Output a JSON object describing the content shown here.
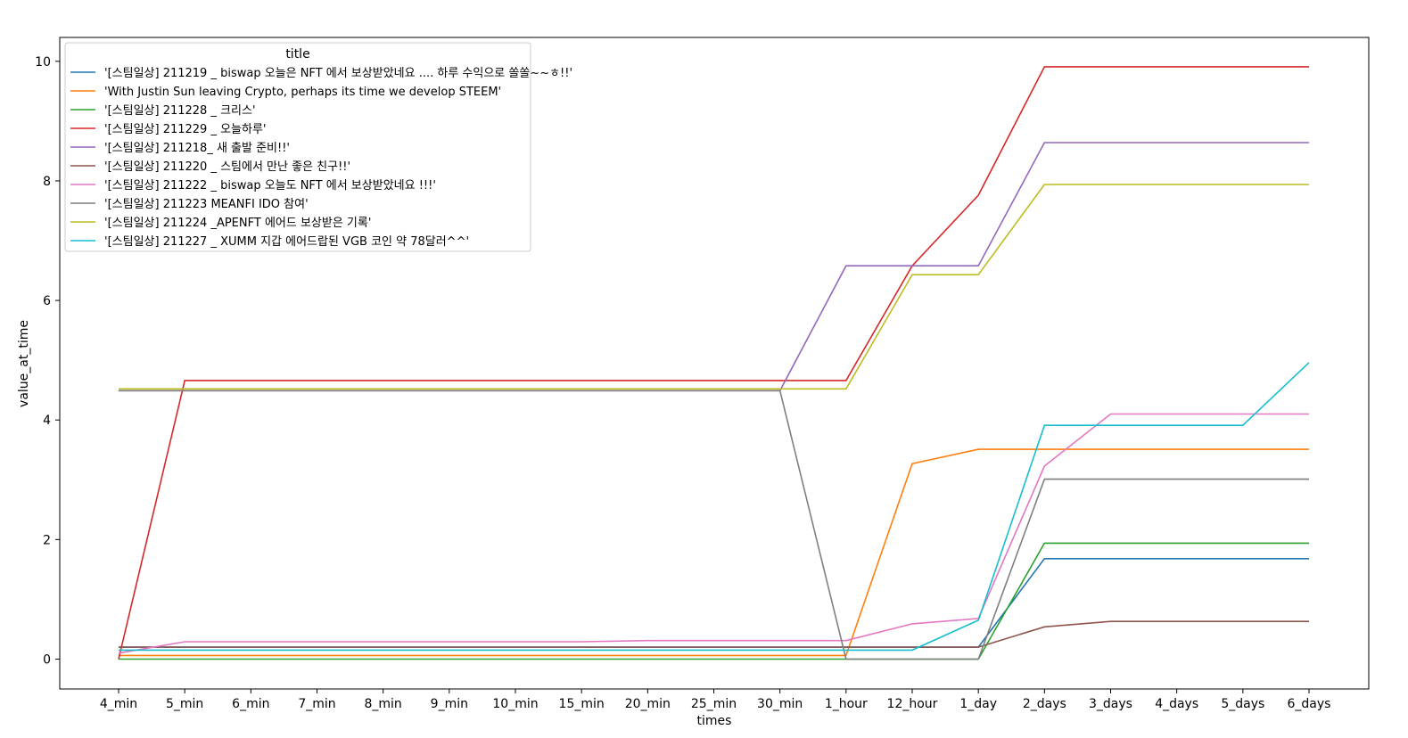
{
  "chart_data": {
    "type": "line",
    "xlabel": "times",
    "ylabel": "value_at_time",
    "legend_title": "title",
    "legend_position": "top-left",
    "grid": false,
    "ylim": [
      -0.5,
      10.4
    ],
    "yticks": [
      0,
      2,
      4,
      6,
      8,
      10
    ],
    "categories": [
      "4_min",
      "5_min",
      "6_min",
      "7_min",
      "8_min",
      "9_min",
      "10_min",
      "15_min",
      "20_min",
      "25_min",
      "30_min",
      "1_hour",
      "12_hour",
      "1_day",
      "2_days",
      "3_days",
      "4_days",
      "5_days",
      "6_days"
    ],
    "series": [
      {
        "name": "'[스팀일상] 211219 _ biswap 오늘은 NFT 에서 보상받았네요  .... 하루 수익으로 쏠쏠~~ㅎ!!'",
        "color": "#1f77b4",
        "values": [
          0.2,
          0.2,
          0.2,
          0.2,
          0.2,
          0.2,
          0.2,
          0.2,
          0.2,
          0.2,
          0.2,
          0.2,
          0.2,
          0.2,
          1.68,
          1.68,
          1.68,
          1.68,
          1.68
        ]
      },
      {
        "name": "'With Justin Sun leaving Crypto, perhaps its time we develop STEEM'",
        "color": "#ff7f0e",
        "values": [
          0.06,
          0.06,
          0.06,
          0.06,
          0.06,
          0.06,
          0.06,
          0.06,
          0.06,
          0.06,
          0.06,
          0.06,
          3.27,
          3.51,
          3.51,
          3.51,
          3.51,
          3.51,
          3.51
        ]
      },
      {
        "name": "'[스팀일상] 211228 _ 크리스'",
        "color": "#2ca02c",
        "values": [
          0.0,
          0.0,
          0.0,
          0.0,
          0.0,
          0.0,
          0.0,
          0.0,
          0.0,
          0.0,
          0.0,
          0.0,
          0.0,
          0.0,
          1.94,
          1.94,
          1.94,
          1.94,
          1.94
        ]
      },
      {
        "name": "'[스팀일상] 211229 _  오늘하루'",
        "color": "#d62728",
        "values": [
          0.0,
          4.66,
          4.66,
          4.66,
          4.66,
          4.66,
          4.66,
          4.66,
          4.66,
          4.66,
          4.66,
          4.66,
          6.58,
          7.76,
          9.91,
          9.91,
          9.91,
          9.91,
          9.91
        ]
      },
      {
        "name": "'[스팀일상] 211218_ 새 출발 준비!!'",
        "color": "#9467bd",
        "values": [
          4.49,
          4.49,
          4.49,
          4.49,
          4.49,
          4.49,
          4.49,
          4.49,
          4.49,
          4.49,
          4.49,
          6.58,
          6.58,
          6.58,
          8.64,
          8.64,
          8.64,
          8.64,
          8.64
        ]
      },
      {
        "name": "'[스팀일상] 211220 _ 스팀에서 만난 좋은 친구!!'",
        "color": "#8c564b",
        "values": [
          0.2,
          0.2,
          0.2,
          0.2,
          0.2,
          0.2,
          0.2,
          0.2,
          0.2,
          0.2,
          0.2,
          0.2,
          0.2,
          0.2,
          0.54,
          0.63,
          0.63,
          0.63,
          0.63
        ]
      },
      {
        "name": "'[스팀일상] 211222 _ biswap 오늘도 NFT 에서 보상받았네요 !!!'",
        "color": "#e377c2",
        "values": [
          0.1,
          0.29,
          0.29,
          0.29,
          0.29,
          0.29,
          0.29,
          0.29,
          0.31,
          0.31,
          0.31,
          0.31,
          0.59,
          0.68,
          3.23,
          4.1,
          4.1,
          4.1,
          4.1
        ]
      },
      {
        "name": "'[스팀일상]  211223  MEANFI IDO  참여'",
        "color": "#7f7f7f",
        "values": [
          4.49,
          4.49,
          4.49,
          4.49,
          4.49,
          4.49,
          4.49,
          4.49,
          4.49,
          4.49,
          4.49,
          0.0,
          0.0,
          0.0,
          3.01,
          3.01,
          3.01,
          3.01,
          3.01
        ]
      },
      {
        "name": "'[스팀일상]  211224 _APENFT 에어드 보상받은 기록'",
        "color": "#bcbd22",
        "values": [
          4.52,
          4.52,
          4.52,
          4.52,
          4.52,
          4.52,
          4.52,
          4.52,
          4.52,
          4.52,
          4.52,
          4.52,
          6.43,
          6.43,
          7.94,
          7.94,
          7.94,
          7.94,
          7.94
        ]
      },
      {
        "name": "'[스팀일상]  211227 _ XUMM 지갑 에어드랍된 VGB 코인 약 78달러^^'",
        "color": "#17becf",
        "values": [
          0.15,
          0.15,
          0.15,
          0.15,
          0.15,
          0.15,
          0.15,
          0.15,
          0.15,
          0.15,
          0.15,
          0.15,
          0.15,
          0.65,
          3.91,
          3.91,
          3.91,
          3.91,
          4.96
        ]
      }
    ]
  }
}
